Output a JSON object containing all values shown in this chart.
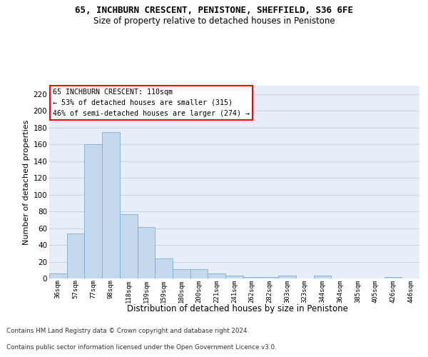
{
  "title": "65, INCHBURN CRESCENT, PENISTONE, SHEFFIELD, S36 6FE",
  "subtitle": "Size of property relative to detached houses in Penistone",
  "xlabel": "Distribution of detached houses by size in Penistone",
  "ylabel": "Number of detached properties",
  "bar_color": "#c5d9ee",
  "bar_edge_color": "#7bafd4",
  "background_color": "#ffffff",
  "plot_bg_color": "#e8eef7",
  "grid_color": "#c8d4e8",
  "categories": [
    "36sqm",
    "57sqm",
    "77sqm",
    "98sqm",
    "118sqm",
    "139sqm",
    "159sqm",
    "180sqm",
    "200sqm",
    "221sqm",
    "241sqm",
    "262sqm",
    "282sqm",
    "303sqm",
    "323sqm",
    "344sqm",
    "364sqm",
    "385sqm",
    "405sqm",
    "426sqm",
    "446sqm"
  ],
  "values": [
    6,
    54,
    160,
    175,
    77,
    61,
    24,
    11,
    11,
    6,
    3,
    2,
    2,
    3,
    0,
    3,
    0,
    0,
    0,
    2,
    0
  ],
  "ylim": [
    0,
    230
  ],
  "yticks": [
    0,
    20,
    40,
    60,
    80,
    100,
    120,
    140,
    160,
    180,
    200,
    220
  ],
  "annotation_line1": "65 INCHBURN CRESCENT: 110sqm",
  "annotation_line2": "← 53% of detached houses are smaller (315)",
  "annotation_line3": "46% of semi-detached houses are larger (274) →",
  "footer_line1": "Contains HM Land Registry data © Crown copyright and database right 2024.",
  "footer_line2": "Contains public sector information licensed under the Open Government Licence v3.0."
}
